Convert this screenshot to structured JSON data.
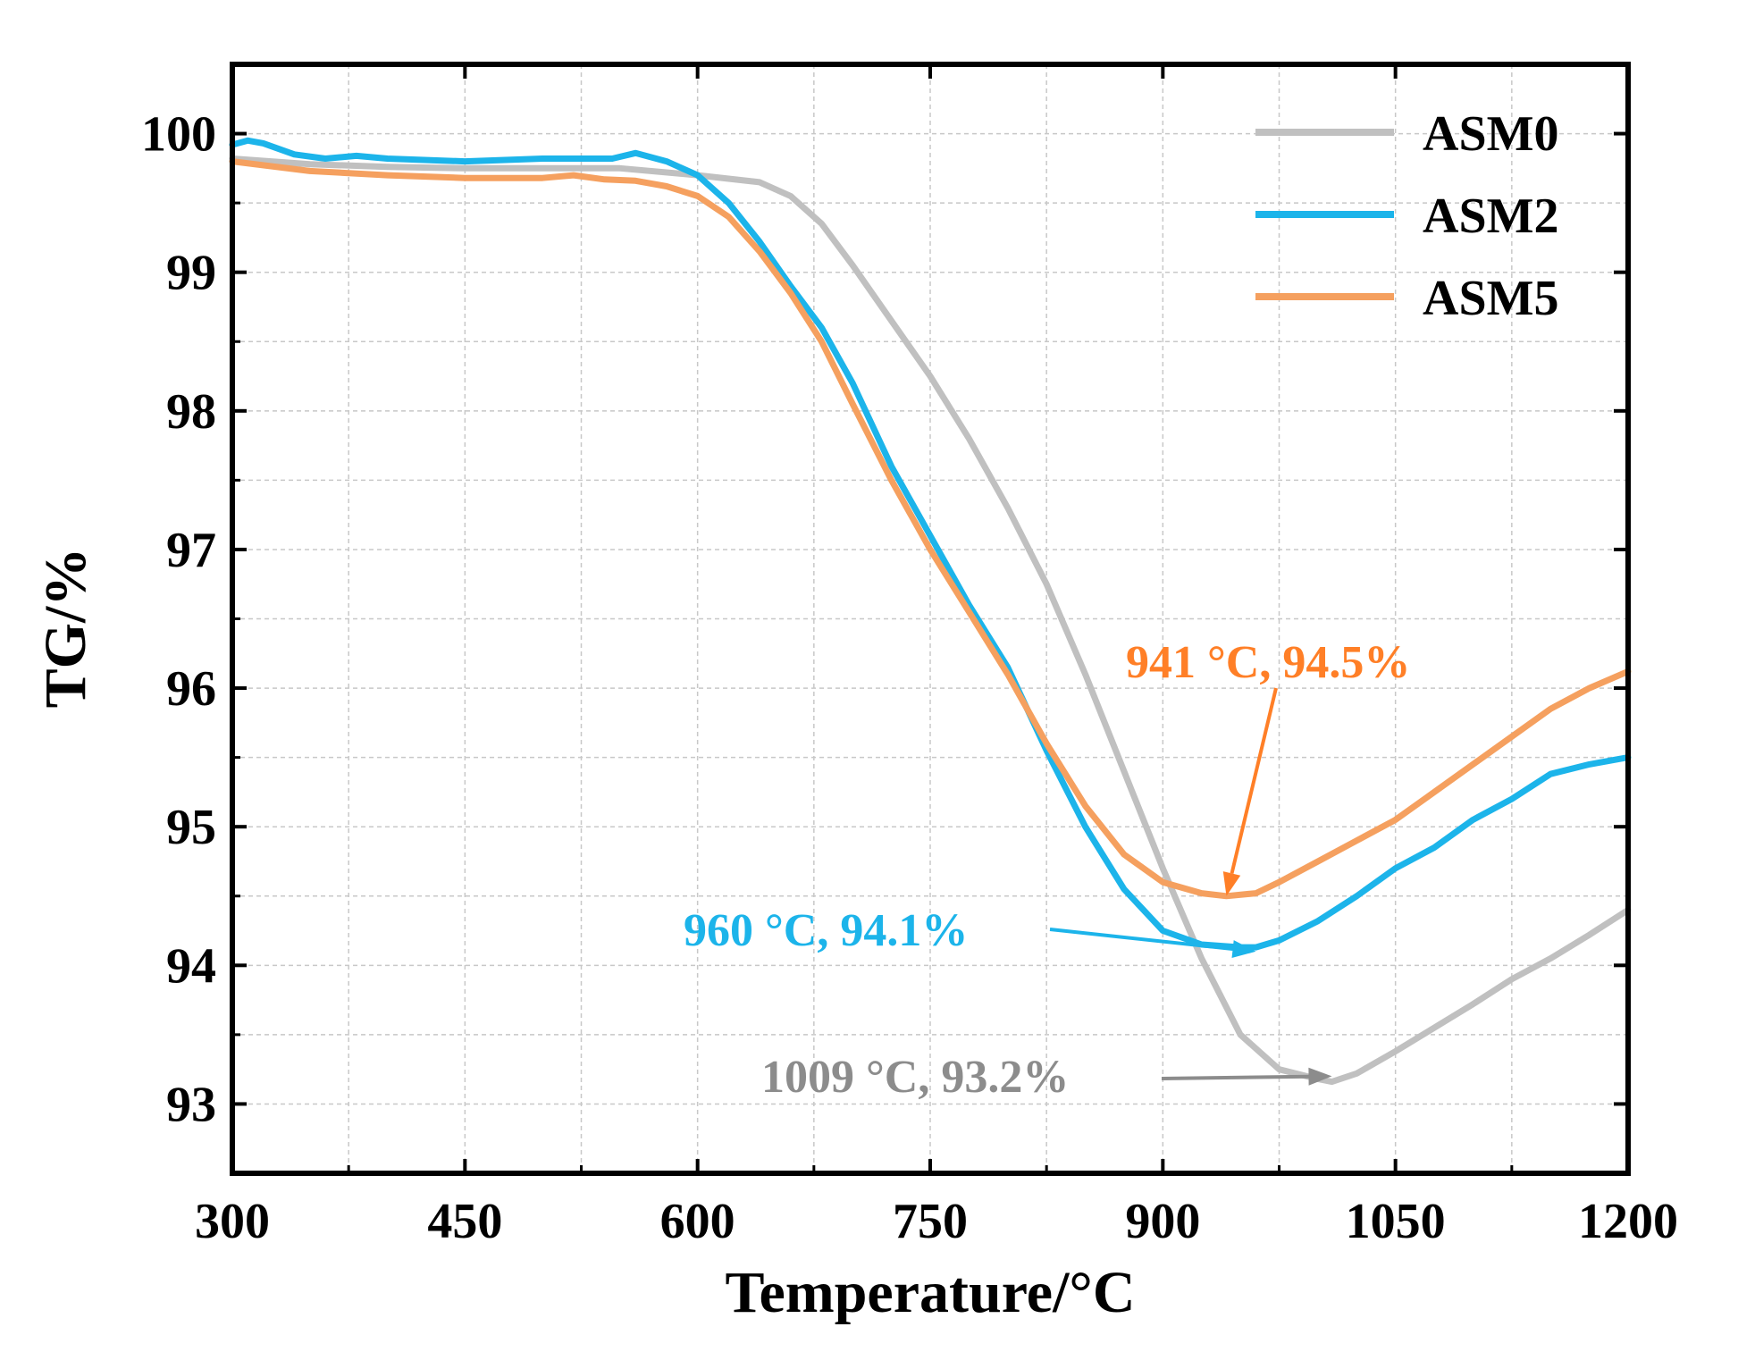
{
  "chart_data": {
    "type": "line",
    "title": "",
    "xlabel": "Temperature/°C",
    "ylabel": "TG/%",
    "xlim": [
      300,
      1200
    ],
    "ylim": [
      92.5,
      100.5
    ],
    "xticks": [
      300,
      450,
      600,
      750,
      900,
      1050,
      1200
    ],
    "xtick_labels": [
      "300",
      "450",
      "600",
      "750",
      "900",
      "1050",
      "1200"
    ],
    "yticks": [
      93,
      94,
      95,
      96,
      97,
      98,
      99,
      100
    ],
    "ytick_labels": [
      "93",
      "94",
      "95",
      "96",
      "97",
      "98",
      "99",
      "100"
    ],
    "grid": true,
    "legend_position": "top-right",
    "series": [
      {
        "name": "ASM0",
        "color": "#c0c0c0",
        "x": [
          300,
          350,
          400,
          450,
          500,
          550,
          600,
          640,
          660,
          680,
          700,
          725,
          750,
          775,
          800,
          825,
          850,
          875,
          900,
          925,
          950,
          975,
          1000,
          1009,
          1025,
          1050,
          1075,
          1100,
          1125,
          1150,
          1175,
          1200
        ],
        "y": [
          99.82,
          99.78,
          99.76,
          99.75,
          99.75,
          99.75,
          99.7,
          99.65,
          99.55,
          99.35,
          99.05,
          98.65,
          98.25,
          97.8,
          97.3,
          96.75,
          96.1,
          95.4,
          94.7,
          94.05,
          93.5,
          93.25,
          93.18,
          93.16,
          93.22,
          93.38,
          93.55,
          93.72,
          93.9,
          94.05,
          94.22,
          94.4
        ]
      },
      {
        "name": "ASM2",
        "color": "#1cb4ea",
        "x": [
          300,
          310,
          320,
          340,
          360,
          380,
          400,
          450,
          500,
          530,
          545,
          560,
          580,
          600,
          620,
          640,
          660,
          680,
          700,
          725,
          750,
          775,
          800,
          825,
          850,
          875,
          900,
          925,
          950,
          960,
          975,
          1000,
          1025,
          1050,
          1075,
          1100,
          1125,
          1150,
          1175,
          1200
        ],
        "y": [
          99.92,
          99.95,
          99.93,
          99.85,
          99.82,
          99.84,
          99.82,
          99.8,
          99.82,
          99.82,
          99.82,
          99.86,
          99.8,
          99.7,
          99.5,
          99.22,
          98.9,
          98.6,
          98.2,
          97.6,
          97.1,
          96.6,
          96.15,
          95.55,
          95.0,
          94.55,
          94.25,
          94.15,
          94.13,
          94.13,
          94.18,
          94.32,
          94.5,
          94.7,
          94.85,
          95.05,
          95.2,
          95.38,
          95.45,
          95.5
        ]
      },
      {
        "name": "ASM5",
        "color": "#f5a05f",
        "x": [
          300,
          350,
          400,
          450,
          500,
          520,
          540,
          560,
          580,
          600,
          620,
          640,
          660,
          680,
          700,
          725,
          750,
          775,
          800,
          825,
          850,
          875,
          900,
          925,
          941,
          960,
          975,
          1000,
          1025,
          1050,
          1075,
          1100,
          1125,
          1150,
          1175,
          1200
        ],
        "y": [
          99.8,
          99.73,
          99.7,
          99.68,
          99.68,
          99.7,
          99.67,
          99.66,
          99.62,
          99.55,
          99.4,
          99.15,
          98.85,
          98.5,
          98.05,
          97.5,
          97.0,
          96.55,
          96.1,
          95.6,
          95.15,
          94.8,
          94.6,
          94.52,
          94.5,
          94.52,
          94.6,
          94.75,
          94.9,
          95.05,
          95.25,
          95.45,
          95.65,
          95.85,
          96.0,
          96.12
        ]
      }
    ],
    "annotations": [
      {
        "text": "941 °C, 94.5%",
        "color": "#ff7f27",
        "point_x": 941,
        "point_y": 94.5
      },
      {
        "text": "960 °C, 94.1%",
        "color": "#1cb4ea",
        "point_x": 960,
        "point_y": 94.1
      },
      {
        "text": "1009 °C, 93.2%",
        "color": "#8c8c8c",
        "point_x": 1009,
        "point_y": 93.2
      }
    ]
  }
}
